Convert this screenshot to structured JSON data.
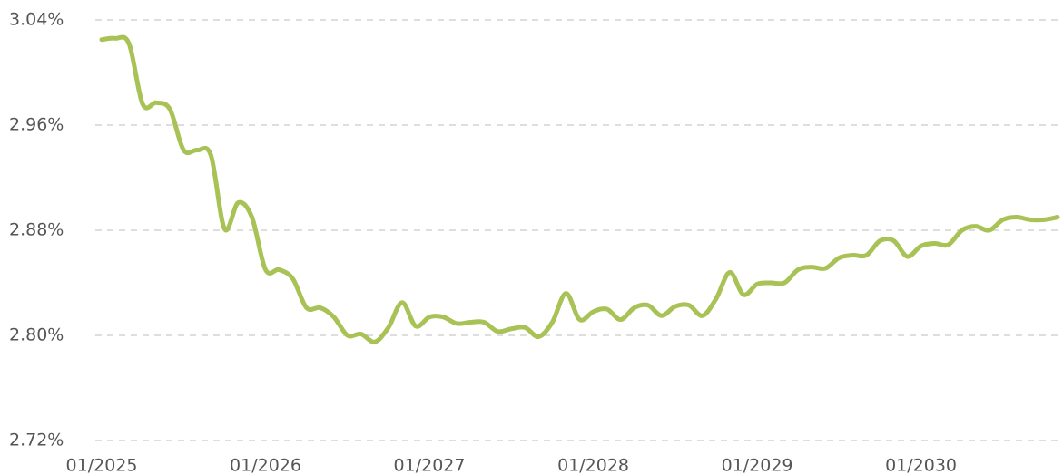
{
  "chart_data": {
    "type": "line",
    "x": [
      "01/2025",
      "02/2025",
      "03/2025",
      "04/2025",
      "05/2025",
      "06/2025",
      "07/2025",
      "08/2025",
      "09/2025",
      "10/2025",
      "11/2025",
      "12/2025",
      "01/2026",
      "02/2026",
      "03/2026",
      "04/2026",
      "05/2026",
      "06/2026",
      "07/2026",
      "08/2026",
      "09/2026",
      "10/2026",
      "11/2026",
      "12/2026",
      "01/2027",
      "02/2027",
      "03/2027",
      "04/2027",
      "05/2027",
      "06/2027",
      "07/2027",
      "08/2027",
      "09/2027",
      "10/2027",
      "11/2027",
      "12/2027",
      "01/2028",
      "02/2028",
      "03/2028",
      "04/2028",
      "05/2028",
      "06/2028",
      "07/2028",
      "08/2028",
      "09/2028",
      "10/2028",
      "11/2028",
      "12/2028",
      "01/2029",
      "02/2029",
      "03/2029",
      "04/2029",
      "05/2029",
      "06/2029",
      "07/2029",
      "08/2029",
      "09/2029",
      "10/2029",
      "11/2029",
      "12/2029",
      "01/2030",
      "02/2030",
      "03/2030",
      "04/2030",
      "05/2030",
      "06/2030",
      "07/2030",
      "08/2030",
      "09/2030",
      "10/2030",
      "11/2030"
    ],
    "series": [
      {
        "color": "#a8c256",
        "values": [
          3.025,
          3.026,
          3.022,
          2.976,
          2.977,
          2.972,
          2.941,
          2.941,
          2.937,
          2.881,
          2.901,
          2.89,
          2.85,
          2.85,
          2.843,
          2.821,
          2.821,
          2.814,
          2.8,
          2.801,
          2.795,
          2.806,
          2.825,
          2.807,
          2.814,
          2.814,
          2.809,
          2.81,
          2.81,
          2.803,
          2.805,
          2.806,
          2.799,
          2.81,
          2.832,
          2.812,
          2.818,
          2.82,
          2.812,
          2.821,
          2.823,
          2.815,
          2.822,
          2.823,
          2.815,
          2.828,
          2.848,
          2.831,
          2.839,
          2.84,
          2.84,
          2.85,
          2.852,
          2.851,
          2.859,
          2.861,
          2.861,
          2.872,
          2.872,
          2.86,
          2.868,
          2.87,
          2.869,
          2.88,
          2.883,
          2.88,
          2.888,
          2.89,
          2.888,
          2.888,
          2.89
        ]
      }
    ],
    "xticks": [
      "01/2025",
      "01/2026",
      "01/2027",
      "01/2028",
      "01/2029",
      "01/2030"
    ],
    "ylim": [
      2.72,
      3.04
    ],
    "yticks": [
      {
        "value": 2.72,
        "label": "2.72%"
      },
      {
        "value": 2.8,
        "label": "2.80%"
      },
      {
        "value": 2.88,
        "label": "2.88%"
      },
      {
        "value": 2.96,
        "label": "2.96%"
      },
      {
        "value": 3.04,
        "label": "3.04%"
      }
    ],
    "grid": true
  }
}
